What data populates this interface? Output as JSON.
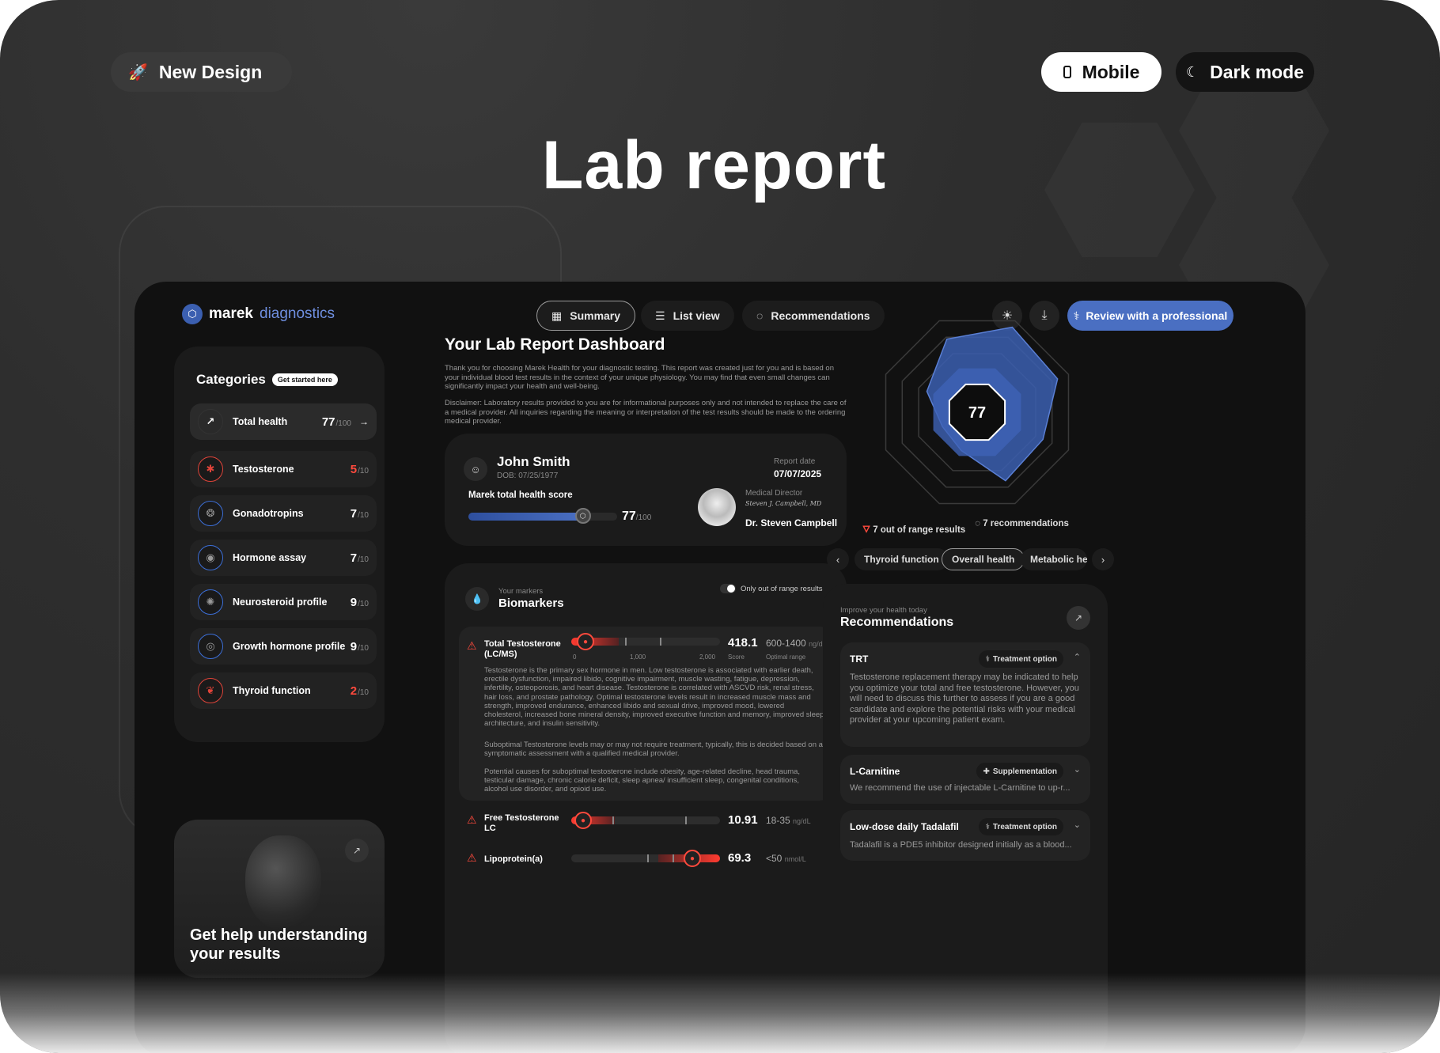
{
  "top": {
    "new_design": "New Design",
    "mobile": "Mobile",
    "dark_mode": "Dark mode",
    "title": "Lab report"
  },
  "app": {
    "logo_a": "marek",
    "logo_b": "diagnostics",
    "nav": [
      "Summary",
      "List view",
      "Recommendations"
    ],
    "review": "Review with a professional"
  },
  "categories": {
    "title": "Categories",
    "badge": "Get started here",
    "items": [
      {
        "name": "Total health",
        "score": "77",
        "max": "/100"
      },
      {
        "name": "Testosterone",
        "score": "5",
        "max": "/10"
      },
      {
        "name": "Gonadotropins",
        "score": "7",
        "max": "/10"
      },
      {
        "name": "Hormone assay",
        "score": "7",
        "max": "/10"
      },
      {
        "name": "Neurosteroid profile",
        "score": "9",
        "max": "/10"
      },
      {
        "name": "Growth hormone profile",
        "score": "9",
        "max": "/10"
      },
      {
        "name": "Thyroid function",
        "score": "2",
        "max": "/10"
      }
    ]
  },
  "help": {
    "text": "Get help understanding your results"
  },
  "dashboard": {
    "title": "Your Lab Report Dashboard",
    "intro": "Thank you for choosing Marek Health for your diagnostic testing. This report was created just for you and is based on your individual blood test results in the context of your unique physiology. You may find that even small changes can significantly impact your health and well-being.",
    "disclaimer": "Disclaimer: Laboratory results provided to you are for informational purposes only and not intended to replace the care of a medical provider. All inquiries regarding the meaning or interpretation of the test results should be made to the ordering medical provider."
  },
  "patient": {
    "name": "John Smith",
    "dob": "DOB: 07/25/1977",
    "report_date_label": "Report date",
    "report_date": "07/07/2025",
    "score_label": "Marek total health score",
    "score": "77",
    "score_max": "/100",
    "score_fraction": 0.77,
    "director_label": "Medical Director",
    "signature": "Steven J. Campbell, MD",
    "director_name": "Dr. Steven Campbell"
  },
  "biomarkers": {
    "eyebrow": "Your markers",
    "title": "Biomarkers",
    "toggle_label": "Only out of range results",
    "items": [
      {
        "name": "Total Testosterone (LC/MS)",
        "value": "418.1",
        "value_label": "Score",
        "range": "600-1400",
        "unit": "ng/dl",
        "range_label": "Optimal range",
        "scale": [
          "0",
          "1,000",
          "2,000"
        ],
        "desc1": "Testosterone is the primary sex hormone in men. Low testosterone is associated with earlier death, erectile dysfunction, impaired libido, cognitive impairment, muscle wasting, fatigue, depression, infertility, osteoporosis, and heart disease. Testosterone is correlated with ASCVD risk, renal stress, hair loss, and prostate pathology. Optimal testosterone levels result in increased muscle mass and strength, improved endurance, enhanced libido and sexual drive, improved mood, lowered cholesterol, increased bone mineral density, improved executive function and memory, improved sleep architecture, and insulin sensitivity.",
        "desc2": "Suboptimal Testosterone levels may or may not require treatment, typically, this is decided based on a symptomatic assessment with a qualified medical provider.",
        "desc3": "Potential causes for suboptimal testosterone include obesity, age-related decline, head trauma, testicular damage, chronic calorie deficit, sleep apnea/ insufficient sleep, congenital conditions, alcohol use disorder, and opioid use."
      },
      {
        "name": "Free Testosterone LC",
        "value": "10.91",
        "range": "18-35",
        "unit": "ng/dL"
      },
      {
        "name": "Lipoprotein(a)",
        "value": "69.3",
        "range": "<50",
        "unit": "nmol/L"
      }
    ]
  },
  "radar": {
    "score": "77",
    "out_of_range": "7 out of range results",
    "recommendations": "7 recommendations",
    "chips": [
      "Thyroid function",
      "Overall health",
      "Metabolic heal"
    ],
    "active_chip": "Overall health"
  },
  "chart_data": {
    "type": "radar",
    "axes_count": 8,
    "values": [
      0.93,
      0.88,
      0.72,
      0.75,
      0.42,
      0.38,
      0.55,
      0.8
    ],
    "center_value": 77,
    "color": "#3b5fb0"
  },
  "recommendations": {
    "eyebrow": "Improve your health today",
    "title": "Recommendations",
    "items": [
      {
        "name": "TRT",
        "tag": "Treatment option",
        "text": "Testosterone replacement therapy may be indicated to help you optimize your total and free testosterone. However, you will need to discuss this further to assess if you are a good candidate and explore the potential risks with your medical provider at your upcoming patient exam."
      },
      {
        "name": "L-Carnitine",
        "tag": "Supplementation",
        "text": "We recommend the use of injectable L-Carnitine to up-r..."
      },
      {
        "name": "Low-dose daily Tadalafil",
        "tag": "Treatment option",
        "text": "Tadalafil is a PDE5 inhibitor designed initially as a blood..."
      }
    ]
  },
  "colors": {
    "accent": "#4a6fc2",
    "alert": "#ff4a3d",
    "background": "#111111"
  }
}
